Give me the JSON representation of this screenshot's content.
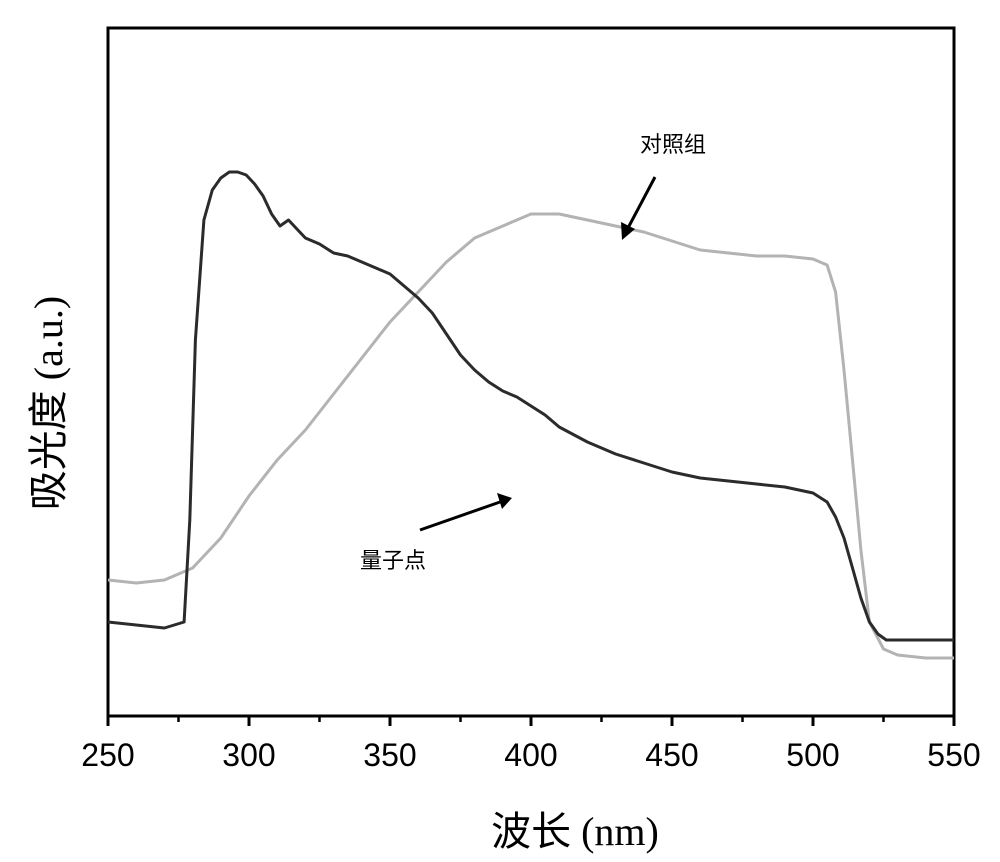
{
  "chart_data": {
    "type": "line",
    "xlabel": "波长 (nm)",
    "ylabel": "吸光度 (a.u.)",
    "xlim": [
      250,
      550
    ],
    "ylim": [
      0,
      1
    ],
    "y_ticks_shown": false,
    "x_ticks": [
      250,
      300,
      350,
      400,
      450,
      500,
      550
    ],
    "x_tick_labels": [
      "250",
      "300",
      "350",
      "400",
      "450",
      "500",
      "550"
    ],
    "grid": false,
    "legend": "none",
    "annotations": [
      {
        "text": "对照组",
        "series": 1
      },
      {
        "text": "量子点",
        "series": 0
      }
    ],
    "series": [
      {
        "name": "量子点",
        "color": "#2b2b2b",
        "x": [
          250,
          260,
          270,
          277,
          279,
          281,
          284,
          287,
          290,
          293,
          296,
          299,
          302,
          305,
          308,
          311,
          314,
          317,
          320,
          325,
          330,
          335,
          340,
          345,
          350,
          355,
          360,
          365,
          370,
          375,
          380,
          385,
          390,
          395,
          400,
          405,
          410,
          420,
          430,
          440,
          450,
          460,
          470,
          480,
          490,
          500,
          505,
          508,
          511,
          514,
          517,
          520,
          523,
          526,
          530,
          540,
          550
        ],
        "y": [
          0.13,
          0.125,
          0.12,
          0.13,
          0.3,
          0.6,
          0.8,
          0.85,
          0.87,
          0.88,
          0.88,
          0.875,
          0.86,
          0.84,
          0.81,
          0.79,
          0.8,
          0.785,
          0.77,
          0.76,
          0.745,
          0.74,
          0.73,
          0.72,
          0.71,
          0.69,
          0.67,
          0.645,
          0.61,
          0.575,
          0.55,
          0.53,
          0.515,
          0.505,
          0.49,
          0.475,
          0.455,
          0.43,
          0.41,
          0.395,
          0.38,
          0.37,
          0.365,
          0.36,
          0.355,
          0.345,
          0.33,
          0.305,
          0.27,
          0.22,
          0.17,
          0.13,
          0.11,
          0.1,
          0.1,
          0.1,
          0.1
        ]
      },
      {
        "name": "对照组",
        "color": "#b3b3b3",
        "x": [
          250,
          260,
          270,
          280,
          290,
          300,
          310,
          320,
          330,
          340,
          350,
          360,
          370,
          380,
          390,
          400,
          410,
          420,
          430,
          440,
          450,
          460,
          470,
          480,
          490,
          500,
          505,
          508,
          511,
          514,
          517,
          520,
          525,
          530,
          540,
          550
        ],
        "y": [
          0.2,
          0.195,
          0.2,
          0.22,
          0.27,
          0.34,
          0.4,
          0.45,
          0.51,
          0.57,
          0.63,
          0.68,
          0.73,
          0.77,
          0.79,
          0.81,
          0.81,
          0.8,
          0.79,
          0.78,
          0.765,
          0.75,
          0.745,
          0.74,
          0.74,
          0.735,
          0.725,
          0.68,
          0.55,
          0.4,
          0.25,
          0.13,
          0.085,
          0.075,
          0.07,
          0.07
        ]
      }
    ]
  }
}
